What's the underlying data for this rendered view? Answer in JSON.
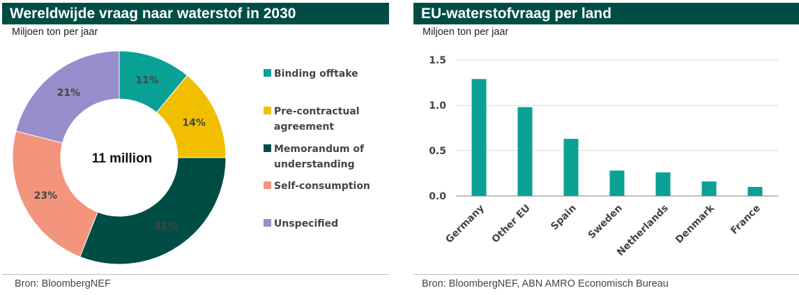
{
  "left": {
    "title": "Wereldwijde vraag naar waterstof in 2030",
    "subtitle": "Miljoen ton per jaar",
    "source": "Bron: BloombergNEF"
  },
  "right": {
    "title": "EU-waterstofvraag per land",
    "subtitle": "Miljoen ton per jaar",
    "source": "Bron: BloombergNEF, ABN AMRO  Economisch Bureau"
  },
  "chart_data": [
    {
      "type": "pie",
      "variant": "donut",
      "title": "Wereldwijde vraag naar waterstof in 2030",
      "subtitle": "Miljoen ton per jaar",
      "center_label": "11 million",
      "legend_position": "right",
      "slices": [
        {
          "name": "Binding offtake",
          "value": 11,
          "label": "11%",
          "color": "#0aa195"
        },
        {
          "name": "Pre-contractual agreement",
          "value": 14,
          "label": "14%",
          "color": "#f2be00"
        },
        {
          "name": "Memorandum of understanding",
          "value": 31,
          "label": "31%",
          "color": "#004d45"
        },
        {
          "name": "Self-consumption",
          "value": 23,
          "label": "23%",
          "color": "#f2957c"
        },
        {
          "name": "Unspecified",
          "value": 21,
          "label": "21%",
          "color": "#978fcc"
        }
      ],
      "legend_lines": [
        [
          "Binding offtake"
        ],
        [
          "Pre-contractual",
          "agreement"
        ],
        [
          "Memorandum of",
          "understanding"
        ],
        [
          "Self-consumption"
        ],
        [
          "Unspecified"
        ]
      ]
    },
    {
      "type": "bar",
      "title": "EU-waterstofvraag per land",
      "subtitle": "Miljoen ton per jaar",
      "categories": [
        "Germany",
        "Other EU",
        "Spain",
        "Sweden",
        "Netherlands",
        "Denmark",
        "France"
      ],
      "values": [
        1.29,
        0.98,
        0.63,
        0.28,
        0.26,
        0.16,
        0.1
      ],
      "ylim": [
        0,
        1.5
      ],
      "yticks": [
        "0.0",
        "0.5",
        "1.0",
        "1.5"
      ],
      "grid": true,
      "bar_color": "#0aa195"
    }
  ]
}
